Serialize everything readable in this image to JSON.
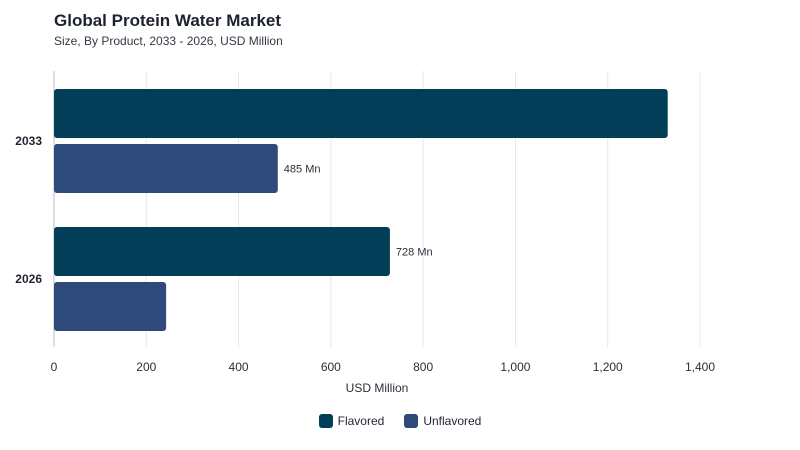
{
  "chart_data": {
    "type": "bar",
    "orientation": "horizontal",
    "title": "Global Protein Water Market",
    "subtitle": "Size, By Product, 2033 - 2026, USD Million",
    "categories": [
      "2033",
      "2026"
    ],
    "series": [
      {
        "name": "Flavored",
        "color": "#023e58",
        "values": [
          1330,
          728
        ],
        "data_labels": [
          "",
          "728 Mn"
        ]
      },
      {
        "name": "Unflavored",
        "color": "#2e4a7a",
        "values": [
          485,
          243
        ],
        "data_labels": [
          "485 Mn",
          ""
        ]
      }
    ],
    "xlabel": "USD Million",
    "xlim": [
      0,
      1400
    ],
    "xticks": [
      0,
      200,
      400,
      600,
      800,
      1000,
      1200,
      1400
    ],
    "xtick_labels": [
      "0",
      "200",
      "400",
      "600",
      "800",
      "1,000",
      "1,200",
      "1,400"
    ],
    "grid": "vertical",
    "legend_position": "bottom-center"
  }
}
